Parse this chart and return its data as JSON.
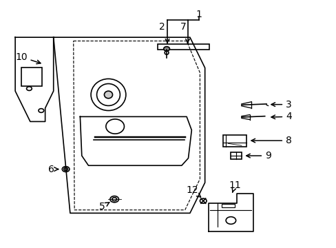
{
  "bg_color": "#ffffff",
  "line_color": "#000000",
  "label_color": "#000000",
  "font_size": 10,
  "line_width": 1.2
}
